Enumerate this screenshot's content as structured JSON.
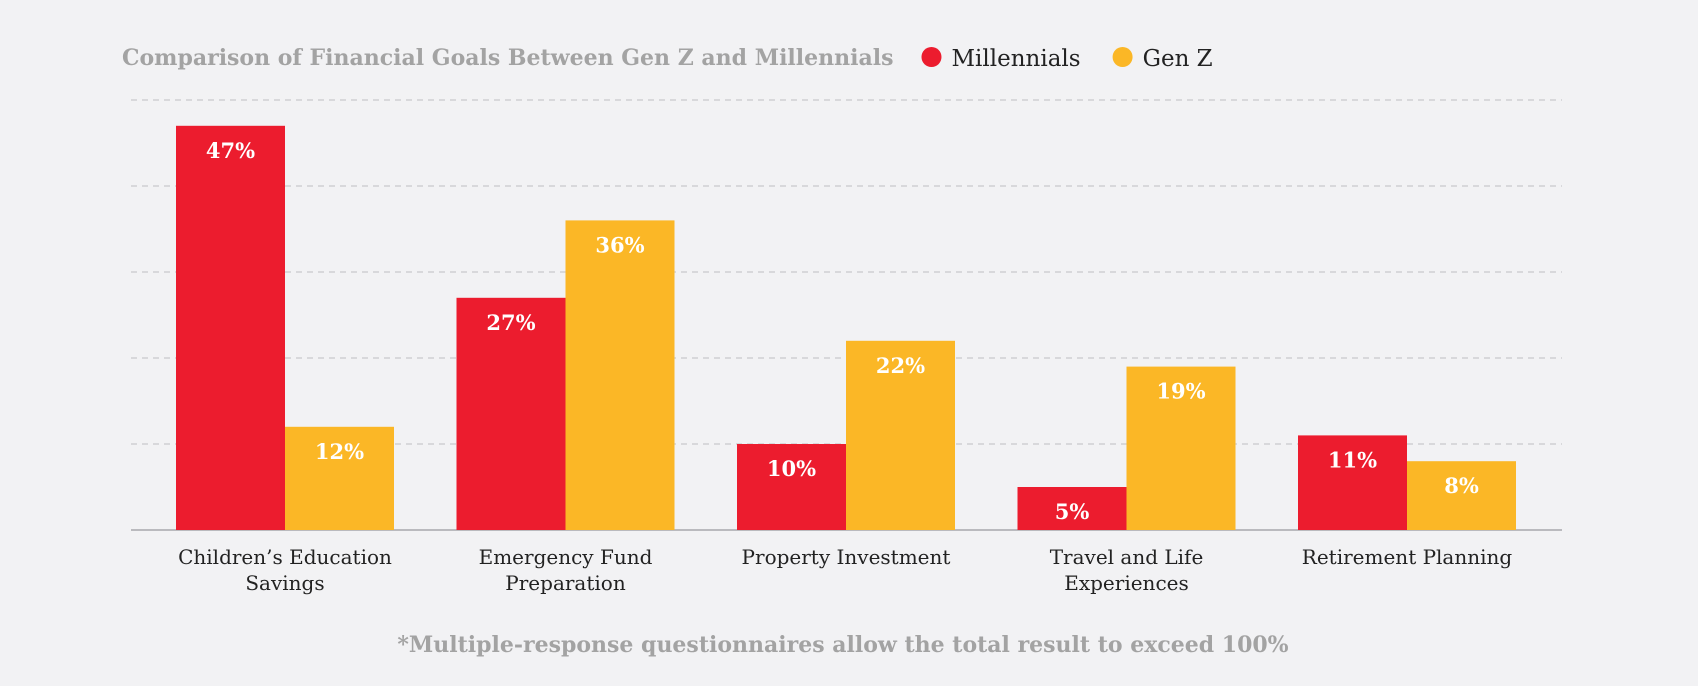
{
  "chart_data": {
    "type": "bar",
    "title": "Comparison of Financial Goals Between Gen Z and Millennials",
    "categories": [
      [
        "Children’s Education",
        "Savings"
      ],
      [
        "Emergency Fund",
        "Preparation"
      ],
      [
        "Property Investment"
      ],
      [
        "Travel and Life",
        "Experiences"
      ],
      [
        "Retirement Planning"
      ]
    ],
    "series": [
      {
        "name": "Millennials",
        "color": "#ec1c2e",
        "values": [
          47,
          27,
          10,
          5,
          11
        ],
        "labels": [
          "47%",
          "27%",
          "10%",
          "5%",
          "11%"
        ]
      },
      {
        "name": "Gen Z",
        "color": "#fbb726",
        "values": [
          12,
          36,
          22,
          19,
          8
        ],
        "labels": [
          "12%",
          "36%",
          "22%",
          "19%",
          "8%"
        ]
      }
    ],
    "ylim": [
      0,
      50
    ],
    "grid": true,
    "legend": "top",
    "footnote": "*Multiple-response questionnaires allow the total result to exceed 100%"
  }
}
